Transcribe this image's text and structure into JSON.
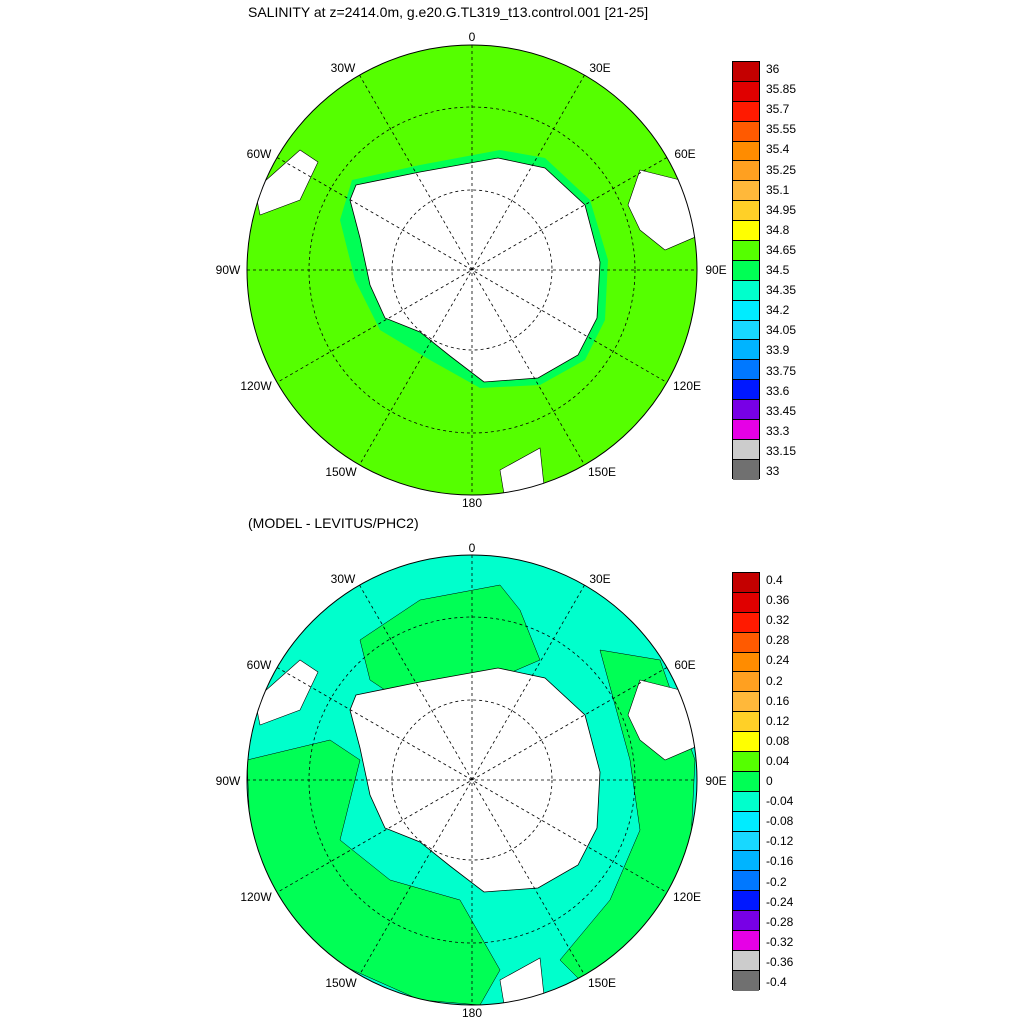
{
  "panel1": {
    "title": "SALINITY at z=2414.0m, g.e20.G.TL319_t13.control.001 [21-25]",
    "lon_labels": {
      "0": "0",
      "30E": "30E",
      "60E": "60E",
      "90E": "90E",
      "120E": "120E",
      "150E": "150E",
      "180": "180",
      "150W": "150W",
      "120W": "120W",
      "90W": "90W",
      "60W": "60W",
      "30W": "30W"
    },
    "colorbar_labels": [
      "36",
      "35.85",
      "35.7",
      "35.55",
      "35.4",
      "35.25",
      "35.1",
      "34.95",
      "34.8",
      "34.65",
      "34.5",
      "34.35",
      "34.2",
      "34.05",
      "33.9",
      "33.75",
      "33.6",
      "33.45",
      "33.3",
      "33.15",
      "33"
    ],
    "colorbar_colors": [
      "#c40000",
      "#e00000",
      "#ff1a00",
      "#ff5a00",
      "#ff8c00",
      "#ffa020",
      "#ffb83a",
      "#ffd027",
      "#ffff00",
      "#55ff00",
      "#00ff55",
      "#00ffcc",
      "#00ecff",
      "#18d8ff",
      "#00b4ff",
      "#0078ff",
      "#0018ff",
      "#7800e6",
      "#e600e6",
      "#cccccc",
      "#707070"
    ]
  },
  "panel2": {
    "title": "(MODEL - LEVITUS/PHC2)",
    "lon_labels": {
      "0": "0",
      "30E": "30E",
      "60E": "60E",
      "90E": "90E",
      "120E": "120E",
      "150E": "150E",
      "180": "180",
      "150W": "150W",
      "120W": "120W",
      "90W": "90W",
      "60W": "60W",
      "30W": "30W"
    },
    "colorbar_labels": [
      "0.4",
      "0.36",
      "0.32",
      "0.28",
      "0.24",
      "0.2",
      "0.16",
      "0.12",
      "0.08",
      "0.04",
      "0",
      "-0.04",
      "-0.08",
      "-0.12",
      "-0.16",
      "-0.2",
      "-0.24",
      "-0.28",
      "-0.32",
      "-0.36",
      "-0.4"
    ],
    "colorbar_colors": [
      "#c40000",
      "#e00000",
      "#ff1a00",
      "#ff5a00",
      "#ff8c00",
      "#ffa020",
      "#ffb83a",
      "#ffd027",
      "#ffff00",
      "#55ff00",
      "#00ff55",
      "#00ffcc",
      "#00ecff",
      "#18d8ff",
      "#00b4ff",
      "#0078ff",
      "#0018ff",
      "#7800e6",
      "#e600e6",
      "#cccccc",
      "#707070"
    ]
  },
  "colors": {
    "panel1_field": "#55ff00",
    "panel2_positive": "#00ff55",
    "panel2_negative": "#00ffcc",
    "land": "#ffffff"
  }
}
